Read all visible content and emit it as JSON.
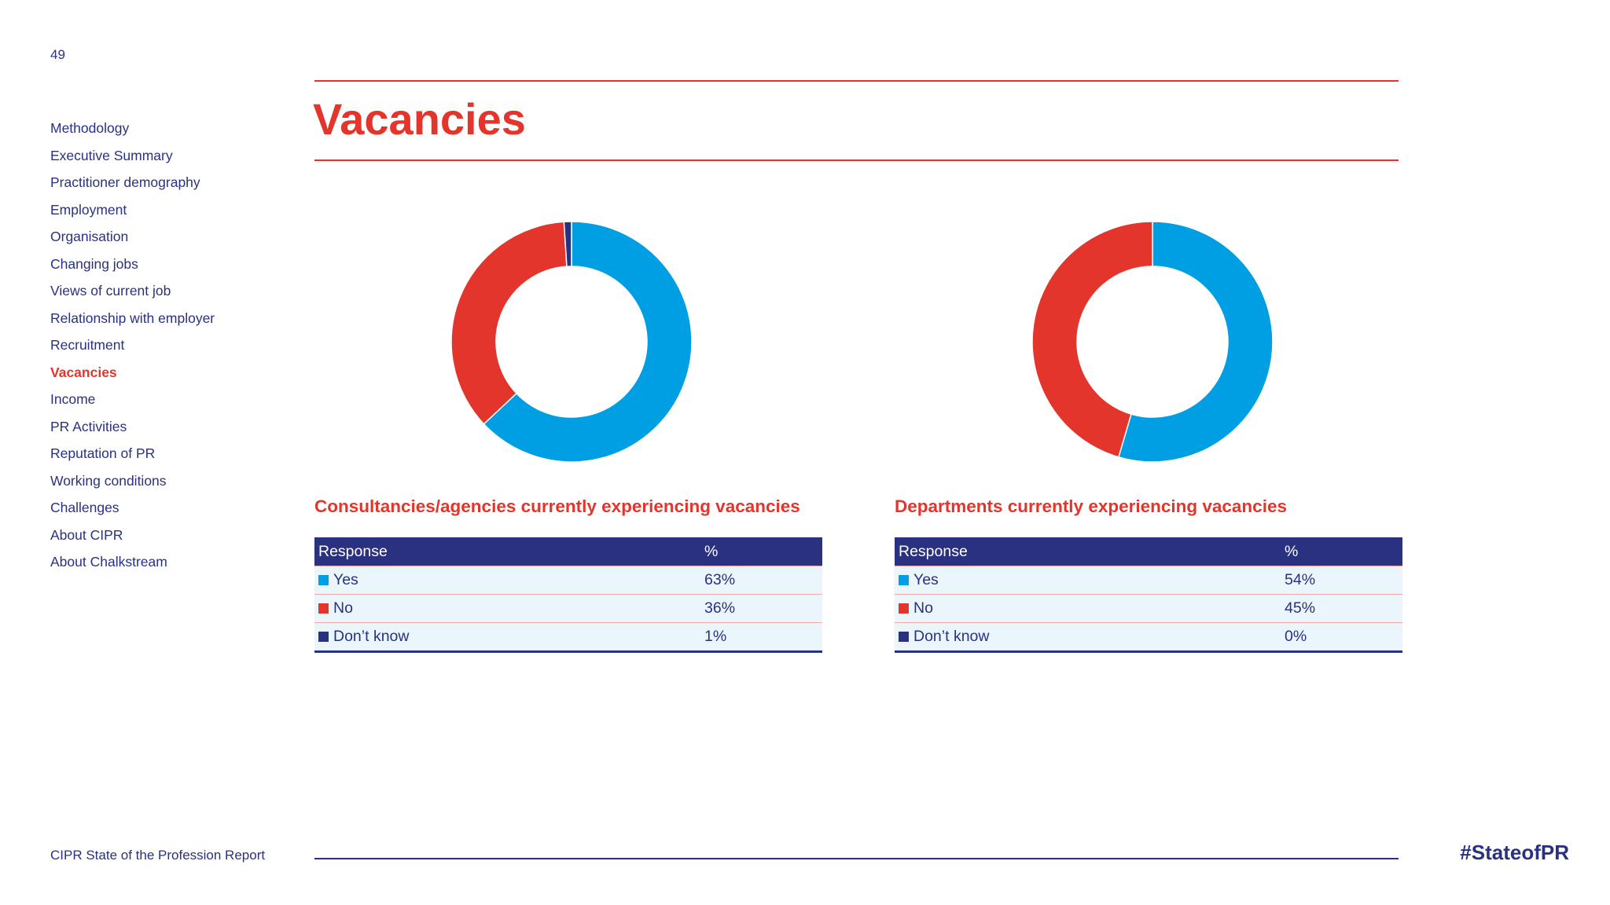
{
  "page_number": "49",
  "nav": {
    "items": [
      {
        "label": "Methodology",
        "active": false
      },
      {
        "label": "Executive Summary",
        "active": false
      },
      {
        "label": "Practitioner demography",
        "active": false
      },
      {
        "label": "Employment",
        "active": false
      },
      {
        "label": "Organisation",
        "active": false
      },
      {
        "label": "Changing jobs",
        "active": false
      },
      {
        "label": "Views of current job",
        "active": false
      },
      {
        "label": "Relationship with employer",
        "active": false
      },
      {
        "label": "Recruitment",
        "active": false
      },
      {
        "label": "Vacancies",
        "active": true
      },
      {
        "label": "Income",
        "active": false
      },
      {
        "label": "PR Activities",
        "active": false
      },
      {
        "label": "Reputation of PR",
        "active": false
      },
      {
        "label": "Working conditions",
        "active": false
      },
      {
        "label": "Challenges",
        "active": false
      },
      {
        "label": "About CIPR",
        "active": false
      },
      {
        "label": "About Chalkstream",
        "active": false
      }
    ]
  },
  "page_title": "Vacancies",
  "colors": {
    "accent": "#e3352b",
    "navy": "#2a3181",
    "yes": "#009fe3",
    "no": "#e3352b",
    "dont_know": "#2a3181",
    "row_bg": "#eaf5fc"
  },
  "table_headers": {
    "response": "Response",
    "percent": "%"
  },
  "chart_data": [
    {
      "type": "pie",
      "donut": true,
      "title": "Consultancies/agencies currently experiencing vacancies",
      "categories": [
        "Yes",
        "No",
        "Don’t know"
      ],
      "values": [
        63,
        36,
        1
      ],
      "labels": [
        "63%",
        "36%",
        "1%"
      ],
      "colors": [
        "#009fe3",
        "#e3352b",
        "#2a3181"
      ]
    },
    {
      "type": "pie",
      "donut": true,
      "title": "Departments currently experiencing vacancies",
      "categories": [
        "Yes",
        "No",
        "Don’t know"
      ],
      "values": [
        54,
        45,
        0
      ],
      "labels": [
        "54%",
        "45%",
        "0%"
      ],
      "colors": [
        "#009fe3",
        "#e3352b",
        "#2a3181"
      ]
    }
  ],
  "footer": {
    "report_name": "CIPR State of the Profession Report",
    "hashtag": "#StateofPR"
  }
}
